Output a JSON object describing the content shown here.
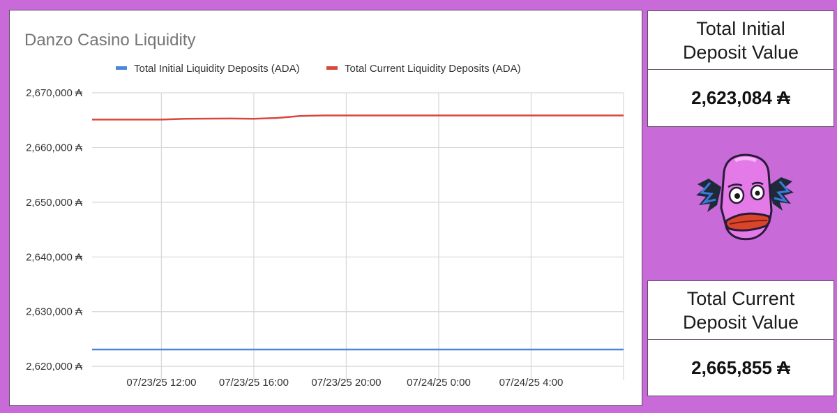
{
  "chart_data": {
    "type": "line",
    "title": "Danzo Casino Liquidity",
    "y_tick_labels": [
      "2,620,000 ₳",
      "2,630,000 ₳",
      "2,640,000 ₳",
      "2,650,000 ₳",
      "2,660,000 ₳",
      "2,670,000 ₳"
    ],
    "y_ticks": [
      2620000,
      2630000,
      2640000,
      2650000,
      2660000,
      2670000
    ],
    "ylim": [
      2619000,
      2670000
    ],
    "x_tick_labels": [
      "07/23/25 12:00",
      "07/23/25 16:00",
      "07/23/25 20:00",
      "07/24/25 0:00",
      "07/24/25 4:00"
    ],
    "x_ticks": [
      12,
      16,
      20,
      24,
      28
    ],
    "xlim": [
      9,
      32
    ],
    "legend_position": "top",
    "grid": true,
    "series": [
      {
        "name": "Total Initial Liquidity Deposits (ADA)",
        "color": "#4a86d9",
        "x": [
          9,
          32
        ],
        "y": [
          2623084,
          2623084
        ]
      },
      {
        "name": "Total Current Liquidity Deposits (ADA)",
        "color": "#d9463b",
        "x": [
          9,
          12,
          13,
          15,
          16,
          17,
          18,
          19,
          20,
          24,
          28,
          32
        ],
        "y": [
          2665100,
          2665100,
          2665250,
          2665300,
          2665250,
          2665400,
          2665750,
          2665850,
          2665855,
          2665855,
          2665855,
          2665855
        ]
      }
    ]
  },
  "cards": {
    "initial_title": "Total Initial Deposit Value",
    "initial_value": "2,623,084 ₳",
    "current_title": "Total Current Deposit Value",
    "current_value": "2,665,855 ₳"
  },
  "mascot": {
    "icon": "clown-face-icon",
    "color": "#e47ae8"
  }
}
